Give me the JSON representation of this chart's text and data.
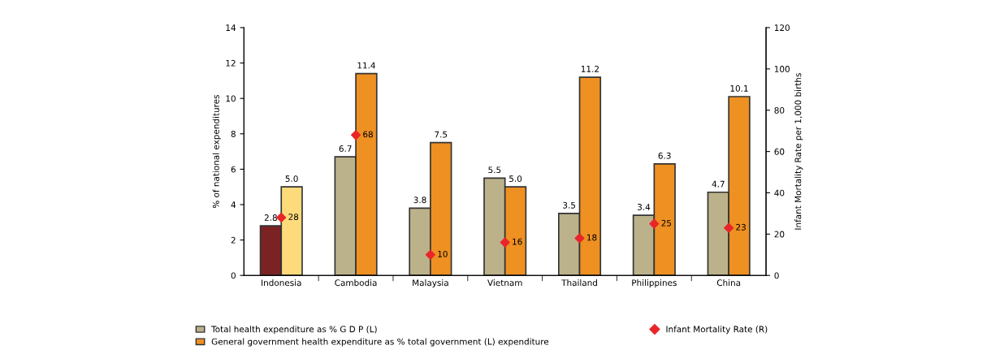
{
  "chart_data": {
    "type": "bar",
    "ylabel": "% of national expenditures",
    "y2label": "Infant Mortality Rate per 1,000 births",
    "categories": [
      "Indonesia",
      "Cambodia",
      "Malaysia",
      "Vietnam",
      "Thailand",
      "Philippines",
      "China"
    ],
    "series": [
      {
        "name": "Total health expenditure as % G D P (L)",
        "color": "#bbb28b",
        "colors": [
          "#7b2224",
          "#bbb28b",
          "#bbb28b",
          "#bbb28b",
          "#bbb28b",
          "#bbb28b",
          "#bbb28b"
        ],
        "values": [
          2.8,
          6.7,
          3.8,
          5.5,
          3.5,
          3.4,
          4.7
        ],
        "value_labels": [
          "2.8",
          "6.7",
          "3.8",
          "5.5",
          "3.5",
          "3.4",
          "4.7"
        ]
      },
      {
        "name": "General government health expenditure as % total government (L) expenditure",
        "color": "#ee9022",
        "colors": [
          "#fddb7a",
          "#ee9022",
          "#ee9022",
          "#ee9022",
          "#ee9022",
          "#ee9022",
          "#ee9022"
        ],
        "values": [
          5.0,
          11.4,
          7.5,
          5.0,
          11.2,
          6.3,
          10.1
        ],
        "value_labels": [
          "5.0",
          "11.4",
          "7.5",
          "5.0",
          "11.2",
          "6.3",
          "10.1"
        ]
      },
      {
        "name": "Infant Mortality Rate (R)",
        "type": "scatter",
        "axis": "y2",
        "color": "#e8262a",
        "marker": "diamond",
        "x": [
          "Indonesia",
          "Cambodia",
          "Malaysia",
          "Vietnam",
          "Thailand",
          "Philippines",
          "China"
        ],
        "values": [
          28,
          68,
          10,
          16,
          18,
          25,
          23
        ]
      }
    ],
    "ylim": [
      0,
      14
    ],
    "yticks": [
      0,
      2,
      4,
      6,
      8,
      10,
      12,
      14
    ],
    "y2lim": [
      0,
      120
    ],
    "y2ticks": [
      0,
      20,
      40,
      60,
      80,
      100,
      120
    ],
    "data_labels": true,
    "legend": "bottom",
    "grid": false
  }
}
